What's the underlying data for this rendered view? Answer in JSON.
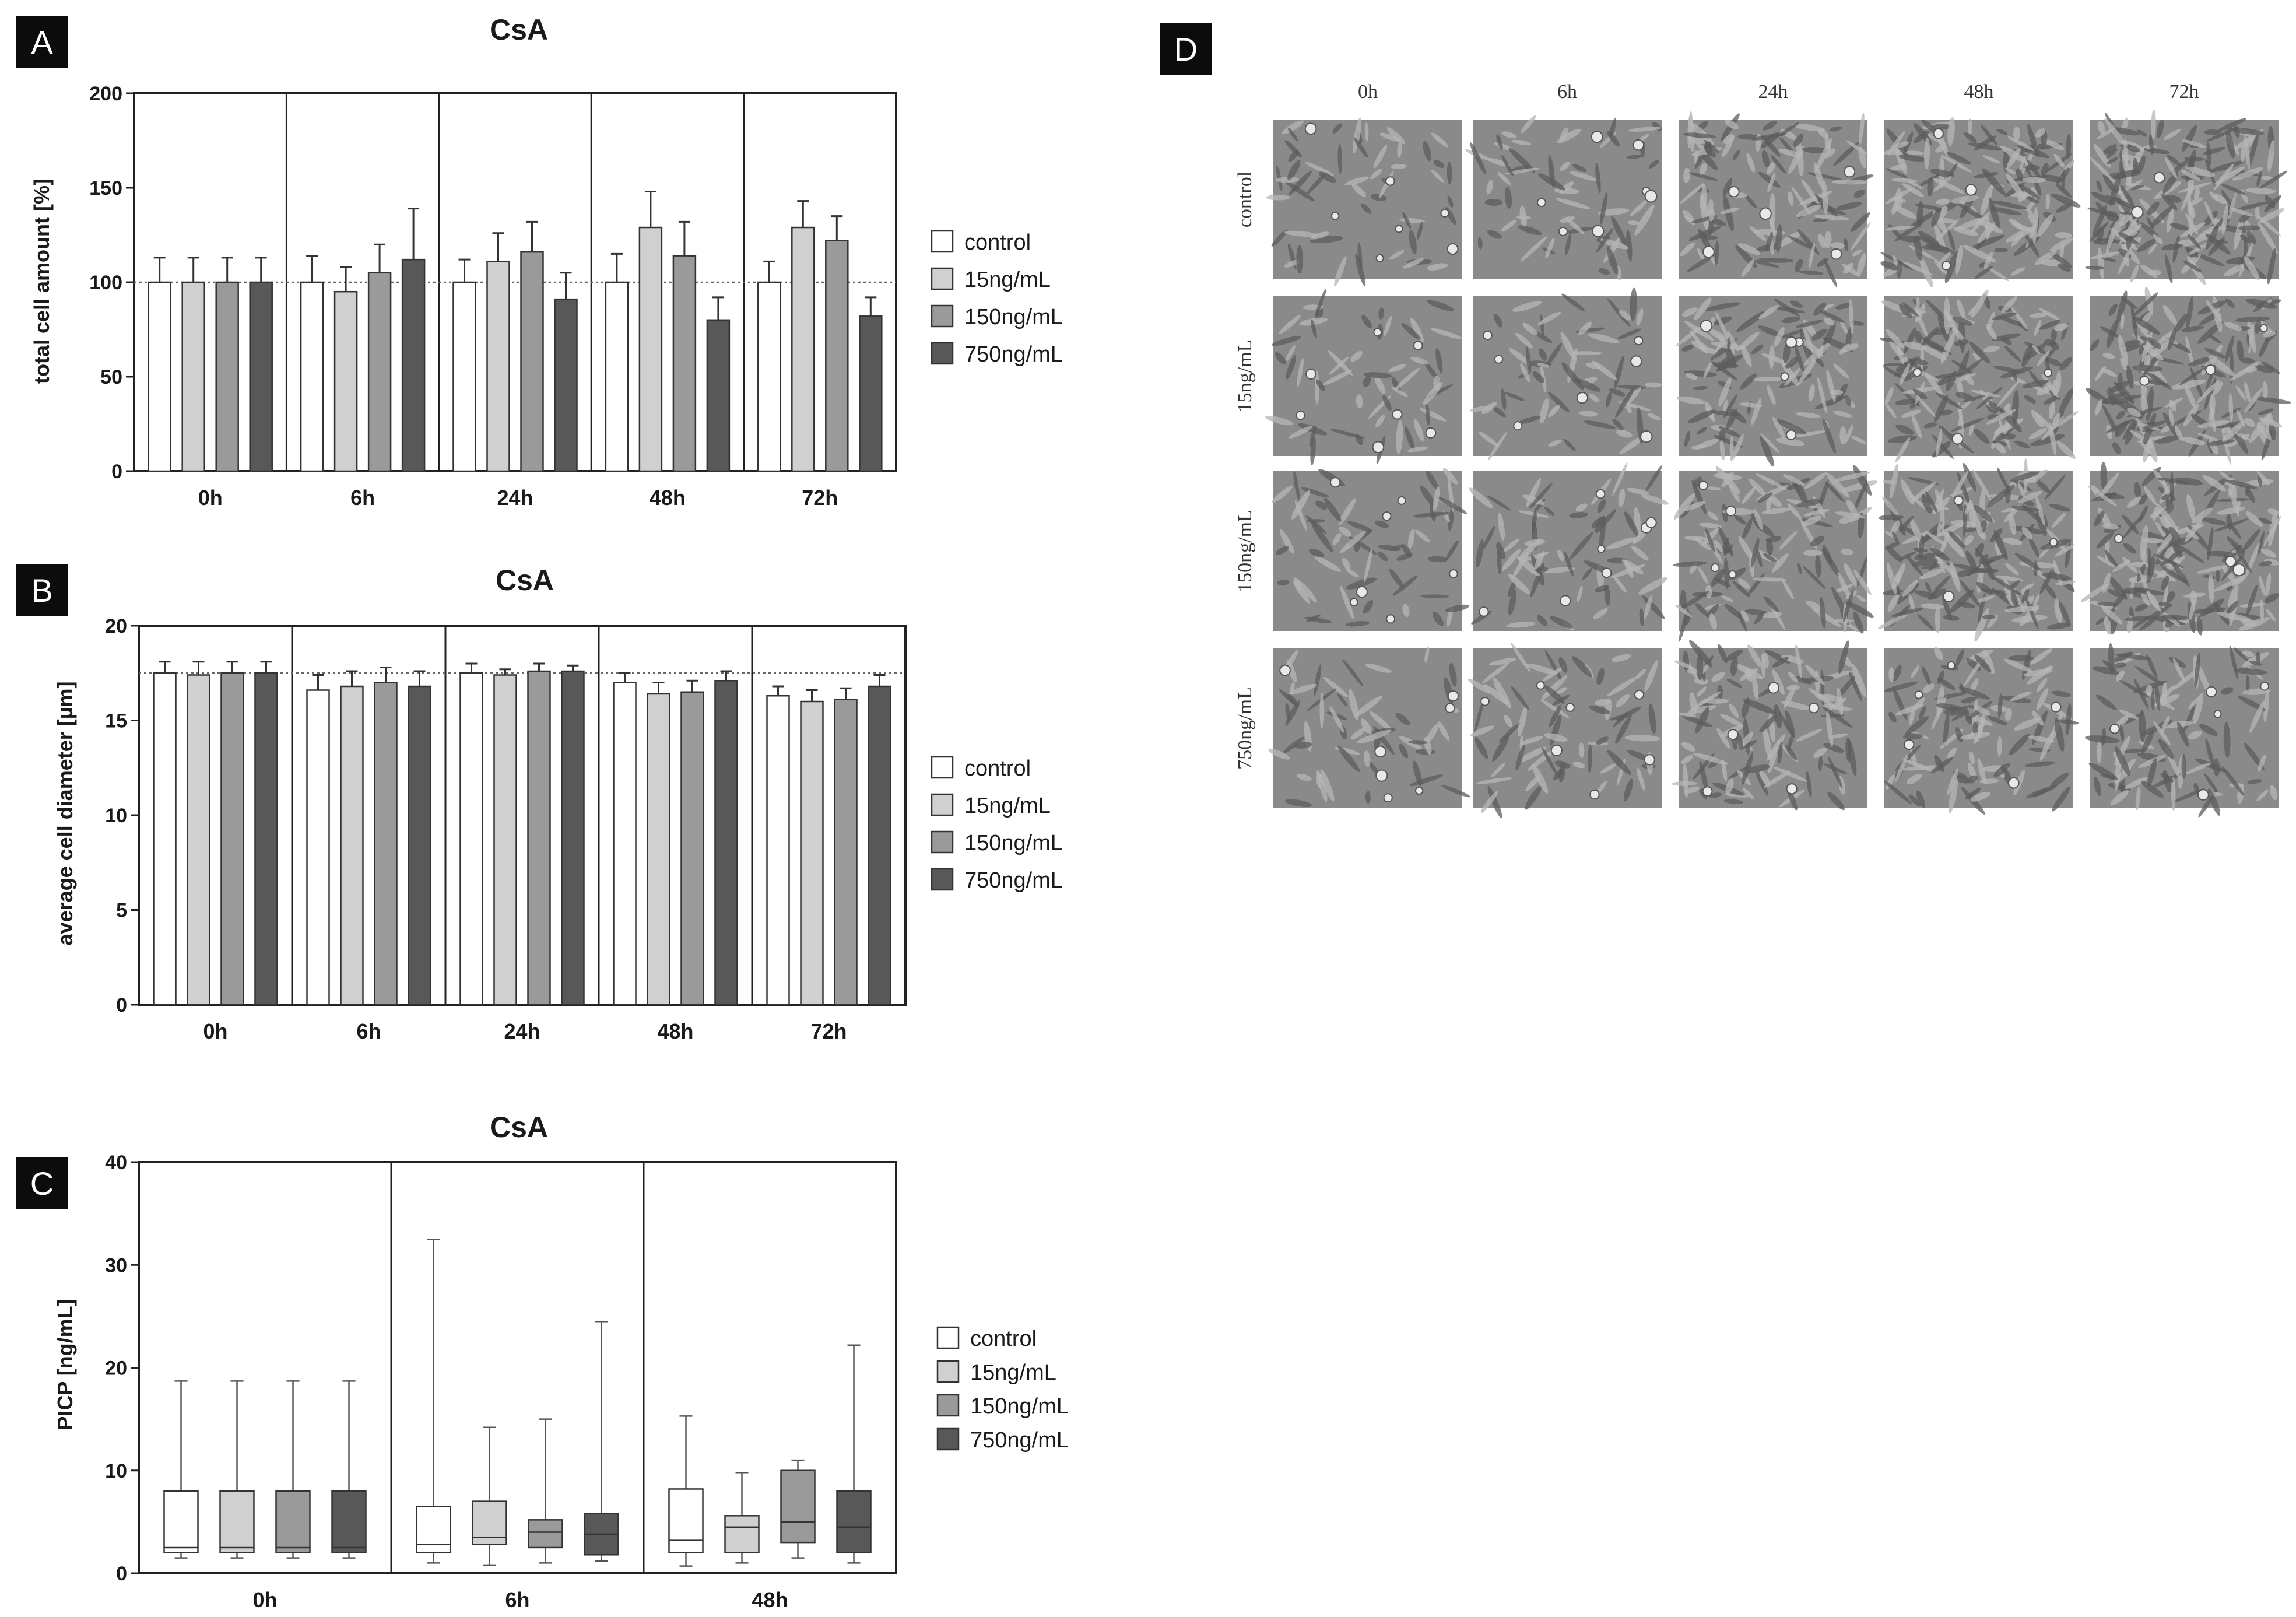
{
  "series_colors": {
    "control": "#ffffff",
    "15ng/mL": "#d0d0d0",
    "150ng/mL": "#9a9a9a",
    "750ng/mL": "#585858"
  },
  "legend": {
    "items": [
      "control",
      "15ng/mL",
      "150ng/mL",
      "750ng/mL"
    ]
  },
  "panels": {
    "a": {
      "letter": "A"
    },
    "b": {
      "letter": "B"
    },
    "c": {
      "letter": "C"
    },
    "d": {
      "letter": "D"
    }
  },
  "chart_data": [
    {
      "type": "bar",
      "panel": "A",
      "title": "CsA",
      "ylabel": "total cell amount [%]",
      "xlabel": "",
      "categories": [
        "0h",
        "6h",
        "24h",
        "48h",
        "72h"
      ],
      "ylim": [
        0,
        200
      ],
      "yticks": [
        0,
        50,
        100,
        150,
        200
      ],
      "reference_line": 100,
      "series": [
        {
          "name": "control",
          "values": [
            100,
            100,
            100,
            100,
            100
          ],
          "errors": [
            13,
            14,
            12,
            15,
            11
          ]
        },
        {
          "name": "15ng/mL",
          "values": [
            100,
            95,
            111,
            129,
            129
          ],
          "errors": [
            13,
            13,
            15,
            19,
            14
          ]
        },
        {
          "name": "150ng/mL",
          "values": [
            100,
            105,
            116,
            114,
            122
          ],
          "errors": [
            13,
            15,
            16,
            18,
            13
          ]
        },
        {
          "name": "750ng/mL",
          "values": [
            100,
            112,
            91,
            80,
            82
          ],
          "errors": [
            13,
            27,
            14,
            12,
            10
          ]
        }
      ]
    },
    {
      "type": "bar",
      "panel": "B",
      "title": "CsA",
      "ylabel": "average cell diameter [µm]",
      "xlabel": "",
      "categories": [
        "0h",
        "6h",
        "24h",
        "48h",
        "72h"
      ],
      "ylim": [
        0,
        20
      ],
      "yticks": [
        0,
        5,
        10,
        15,
        20
      ],
      "reference_line": 17.5,
      "series": [
        {
          "name": "control",
          "values": [
            17.5,
            16.6,
            17.5,
            17.0,
            16.3
          ],
          "errors": [
            0.6,
            0.8,
            0.5,
            0.5,
            0.5
          ]
        },
        {
          "name": "15ng/mL",
          "values": [
            17.4,
            16.8,
            17.4,
            16.4,
            16.0
          ],
          "errors": [
            0.7,
            0.8,
            0.3,
            0.6,
            0.6
          ]
        },
        {
          "name": "150ng/mL",
          "values": [
            17.5,
            17.0,
            17.6,
            16.5,
            16.1
          ],
          "errors": [
            0.6,
            0.8,
            0.4,
            0.6,
            0.6
          ]
        },
        {
          "name": "750ng/mL",
          "values": [
            17.5,
            16.8,
            17.6,
            17.1,
            16.8
          ],
          "errors": [
            0.6,
            0.8,
            0.3,
            0.5,
            0.6
          ]
        }
      ]
    },
    {
      "type": "box",
      "panel": "C",
      "title": "CsA",
      "ylabel": "PICP [ng/mL]",
      "xlabel": "",
      "categories": [
        "0h",
        "6h",
        "48h"
      ],
      "ylim": [
        0,
        40
      ],
      "yticks": [
        0,
        10,
        20,
        30,
        40
      ],
      "series": [
        {
          "name": "control",
          "boxes": [
            {
              "min": 1.5,
              "q1": 2.0,
              "median": 2.5,
              "q3": 8.0,
              "max": 18.7
            },
            {
              "min": 1.0,
              "q1": 2.0,
              "median": 2.8,
              "q3": 6.5,
              "max": 32.5
            },
            {
              "min": 0.7,
              "q1": 2.0,
              "median": 3.2,
              "q3": 8.2,
              "max": 15.3
            }
          ]
        },
        {
          "name": "15ng/mL",
          "boxes": [
            {
              "min": 1.5,
              "q1": 2.0,
              "median": 2.5,
              "q3": 8.0,
              "max": 18.7
            },
            {
              "min": 0.8,
              "q1": 2.8,
              "median": 3.5,
              "q3": 7.0,
              "max": 14.2
            },
            {
              "min": 1.0,
              "q1": 2.0,
              "median": 4.5,
              "q3": 5.6,
              "max": 9.8
            }
          ]
        },
        {
          "name": "150ng/mL",
          "boxes": [
            {
              "min": 1.5,
              "q1": 2.0,
              "median": 2.5,
              "q3": 8.0,
              "max": 18.7
            },
            {
              "min": 1.0,
              "q1": 2.5,
              "median": 4.0,
              "q3": 5.2,
              "max": 15.0
            },
            {
              "min": 1.5,
              "q1": 3.0,
              "median": 5.0,
              "q3": 10.0,
              "max": 11.0
            }
          ]
        },
        {
          "name": "750ng/mL",
          "boxes": [
            {
              "min": 1.5,
              "q1": 2.0,
              "median": 2.5,
              "q3": 8.0,
              "max": 18.7
            },
            {
              "min": 1.2,
              "q1": 1.8,
              "median": 3.8,
              "q3": 5.8,
              "max": 24.5
            },
            {
              "min": 1.0,
              "q1": 2.0,
              "median": 4.5,
              "q3": 8.0,
              "max": 22.2
            }
          ]
        }
      ]
    }
  ],
  "micrographs": {
    "columns": [
      "0h",
      "6h",
      "24h",
      "48h",
      "72h"
    ],
    "rows": [
      "control",
      "15ng/mL",
      "150ng/mL",
      "750ng/mL"
    ],
    "cell_density": [
      [
        0.15,
        0.2,
        0.55,
        0.8,
        1.0
      ],
      [
        0.15,
        0.2,
        0.55,
        0.8,
        0.85
      ],
      [
        0.2,
        0.25,
        0.6,
        0.9,
        0.9
      ],
      [
        0.15,
        0.25,
        0.55,
        0.5,
        0.45
      ]
    ]
  }
}
